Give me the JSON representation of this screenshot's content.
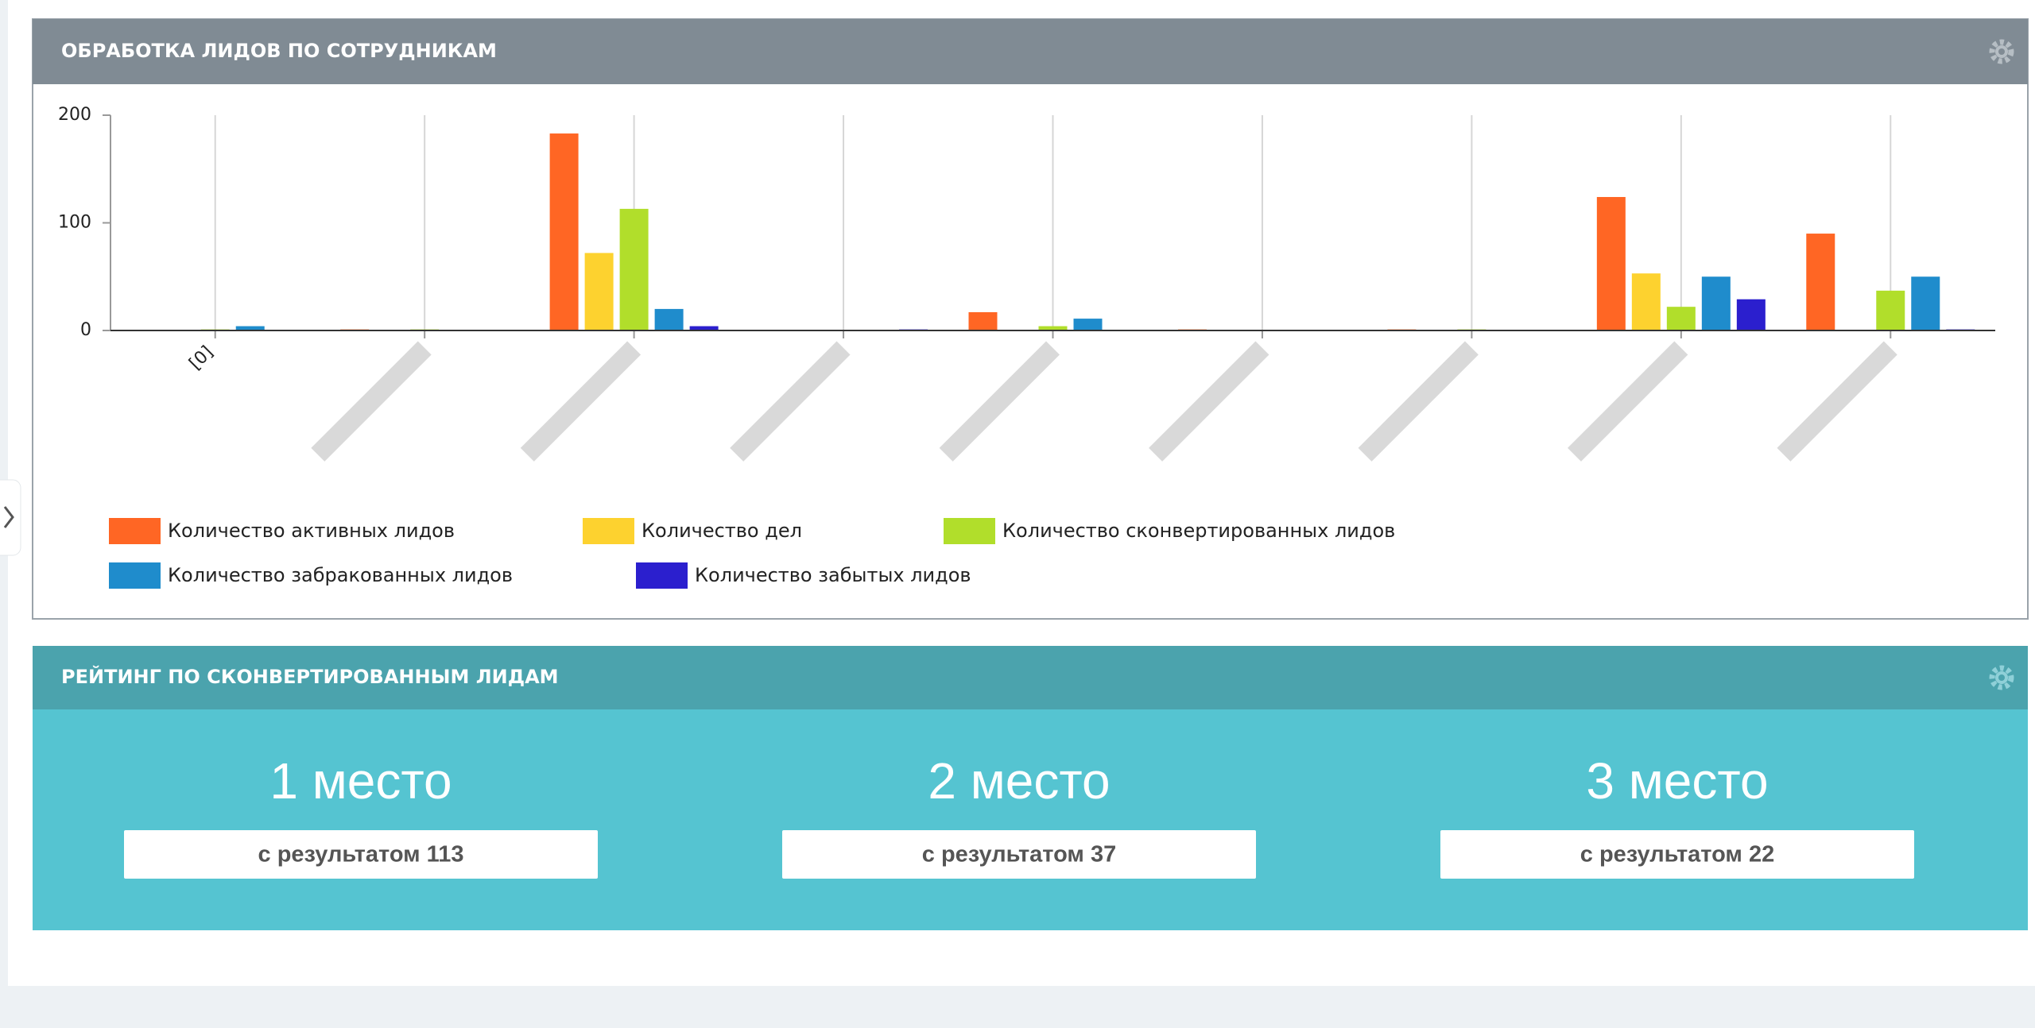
{
  "chart_data": {
    "type": "bar",
    "title": "ОБРАБОТКА ЛИДОВ ПО СОТРУДНИКАМ",
    "categories": [
      "[0]",
      null,
      null,
      null,
      null,
      null,
      null,
      null,
      null
    ],
    "series": [
      {
        "name": "Количество активных лидов",
        "color": "#ff6624",
        "values": [
          0,
          1,
          183,
          0,
          17,
          1,
          1,
          124,
          90
        ]
      },
      {
        "name": "Количество дел",
        "color": "#fdd22f",
        "values": [
          0,
          0,
          72,
          0,
          0,
          0,
          0,
          53,
          0
        ]
      },
      {
        "name": "Количество сконвертированных лидов",
        "color": "#b1de2b",
        "values": [
          1,
          1,
          113,
          0,
          4,
          0,
          1,
          22,
          37
        ]
      },
      {
        "name": "Количество забракованных лидов",
        "color": "#1f8ccc",
        "values": [
          4,
          0,
          20,
          0,
          11,
          0,
          0,
          50,
          50
        ]
      },
      {
        "name": "Количество забытых лидов",
        "color": "#2b1fce",
        "values": [
          0,
          0,
          4,
          1,
          0,
          0,
          0,
          29,
          1
        ]
      }
    ],
    "ylim": [
      0,
      200
    ],
    "yticks": [
      0,
      100,
      200
    ],
    "grid": true
  },
  "rating": {
    "title": "РЕЙТИНГ ПО СКОНВЕРТИРОВАННЫМ ЛИДАМ",
    "places": [
      {
        "place": "1 место",
        "result": "с результатом 113"
      },
      {
        "place": "2 место",
        "result": "с результатом 37"
      },
      {
        "place": "3 место",
        "result": "с результатом 22"
      }
    ]
  }
}
